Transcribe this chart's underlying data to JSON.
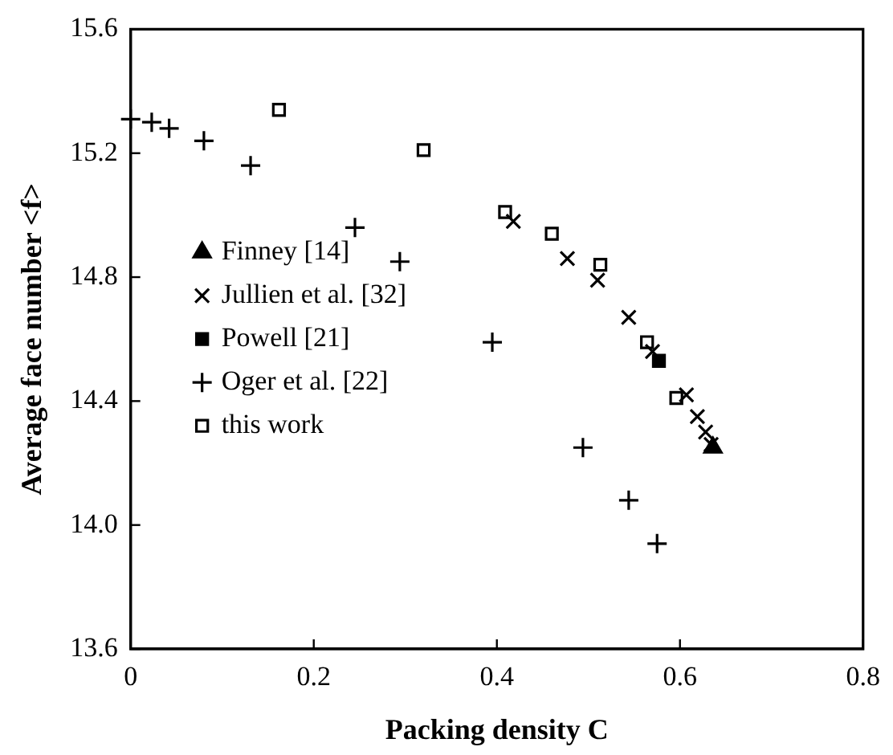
{
  "chart_data": {
    "type": "scatter",
    "xlabel": "Packing density C",
    "ylabel": "Average face number <f>",
    "xlim": [
      0,
      0.8
    ],
    "xticks": [
      0,
      0.2,
      0.4,
      0.6,
      0.8
    ],
    "ylim": [
      13.6,
      15.6
    ],
    "yticks": [
      13.6,
      {
        "value": 14,
        "label": "14.0"
      },
      14.4,
      14.8,
      15.2,
      15.6
    ],
    "grid": false,
    "legend": "left",
    "series": [
      {
        "name": "Finney [14]",
        "color": "#000000",
        "marker": "triangle",
        "x": [
          0.636
        ],
        "values": [
          14.25
        ]
      },
      {
        "name": "Jullien et al. [32]",
        "color": "#000000",
        "marker": "cross",
        "x": [
          0.418,
          0.477,
          0.51,
          0.544,
          0.57,
          0.607,
          0.619,
          0.628,
          0.634
        ],
        "values": [
          14.98,
          14.86,
          14.79,
          14.67,
          14.56,
          14.42,
          14.35,
          14.3,
          14.26
        ]
      },
      {
        "name": "Powell [21]",
        "color": "#000000",
        "marker": "square",
        "x": [
          0.577
        ],
        "values": [
          14.53
        ]
      },
      {
        "name": "Oger et al. [22]",
        "color": "#000000",
        "marker": "plus",
        "x": [
          0,
          0.023,
          0.042,
          0.08,
          0.131,
          0.245,
          0.294,
          0.395,
          0.494,
          0.544,
          0.575
        ],
        "values": [
          15.31,
          15.3,
          15.28,
          15.24,
          15.16,
          14.96,
          14.85,
          14.59,
          14.25,
          14.08,
          13.94
        ]
      },
      {
        "name": "this work",
        "color": "#000000",
        "marker": "square",
        "x": [
          0.162,
          0.32,
          0.409,
          0.46,
          0.513,
          0.564,
          0.596
        ],
        "values": [
          15.34,
          15.21,
          15.01,
          14.94,
          14.84,
          14.59,
          14.41
        ]
      }
    ]
  }
}
